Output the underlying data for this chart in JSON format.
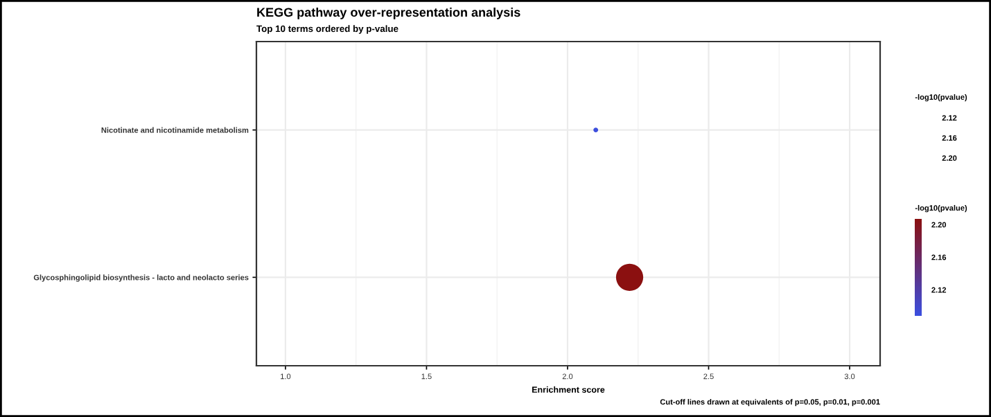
{
  "chart_data": {
    "type": "bubble",
    "title": "KEGG pathway over-representation analysis",
    "subtitle": "Top 10 terms ordered by p-value",
    "xlabel": "Enrichment score",
    "legend_title": "-log10(pvalue)",
    "clabel": "-log10(pvalue)",
    "categories": [
      "Nicotinate and nicotinamide metabolism",
      "Glycosphingolipid biosynthesis - lacto and neolacto series"
    ],
    "values": [
      2.1,
      2.22
    ],
    "sizes": [
      0.03,
      1
    ],
    "cvalues": [
      2.09,
      2.21
    ],
    "clim": [
      2.088,
      2.207
    ],
    "cticks": [
      {
        "value": 2.12,
        "label": "2.12"
      },
      {
        "value": 2.16,
        "label": "2.16"
      },
      {
        "value": 2.2,
        "label": "2.20"
      }
    ],
    "orientation": "horizontal",
    "xlim": [
      0.897,
      3.108
    ],
    "xticks": [
      {
        "value": 1,
        "label": "1.0"
      },
      1.5,
      {
        "value": 2,
        "label": "2.0"
      },
      2.5,
      {
        "value": 3,
        "label": "3.0"
      }
    ],
    "grid": true,
    "annotations": [
      "2.12",
      "2.16",
      "2.20",
      "Cut-off lines drawn at equivalents of p=0.05, p=0.01, p=0.001"
    ]
  }
}
